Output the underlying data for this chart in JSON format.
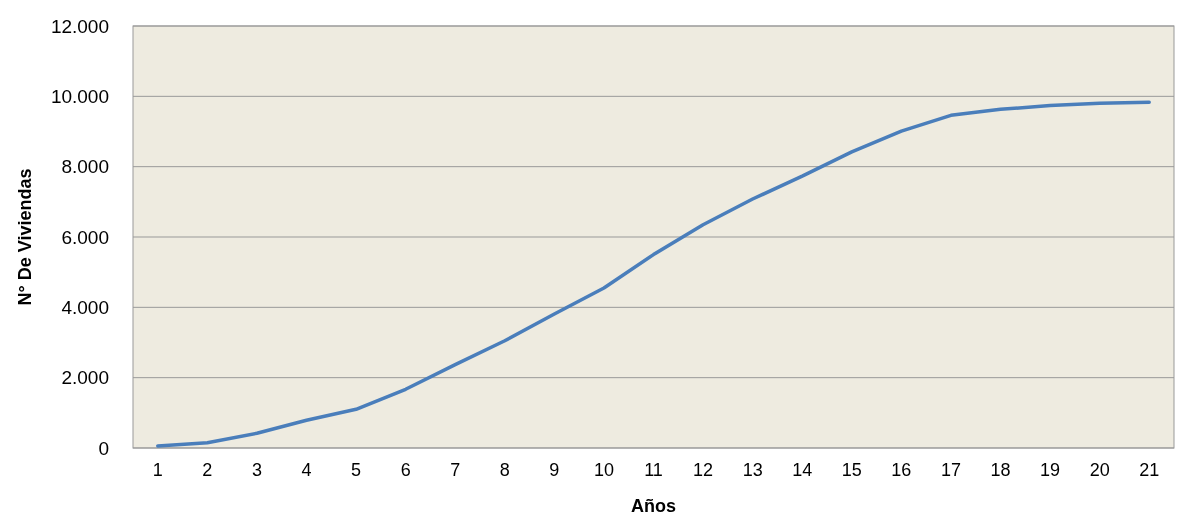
{
  "chart_data": {
    "type": "line",
    "xlabel": "Años",
    "ylabel": "N° De Viviendas",
    "x": [
      1,
      2,
      3,
      4,
      5,
      6,
      7,
      8,
      9,
      10,
      11,
      12,
      13,
      14,
      15,
      16,
      17,
      18,
      19,
      20,
      21
    ],
    "series": [
      {
        "color": "#4a7ebb",
        "values": [
          60,
          150,
          420,
          790,
          1100,
          1670,
          2370,
          3050,
          3810,
          4550,
          5500,
          6350,
          7080,
          7730,
          8420,
          9010,
          9460,
          9630,
          9740,
          9800,
          9830
        ]
      }
    ],
    "xlim": [
      0.5,
      21.5
    ],
    "xticks": [
      1,
      2,
      3,
      4,
      5,
      6,
      7,
      8,
      9,
      10,
      11,
      12,
      13,
      14,
      15,
      16,
      17,
      18,
      19,
      20,
      21
    ],
    "ylim": [
      0,
      12000
    ],
    "yticks": [
      {
        "value": 0,
        "label": "0"
      },
      {
        "value": 2000,
        "label": "2.000"
      },
      {
        "value": 4000,
        "label": "4.000"
      },
      {
        "value": 6000,
        "label": "6.000"
      },
      {
        "value": 8000,
        "label": "8.000"
      },
      {
        "value": 10000,
        "label": "10.000"
      },
      {
        "value": 12000,
        "label": "12.000"
      }
    ],
    "grid": "y",
    "legend": false,
    "marker": "none",
    "line_style": "solid"
  }
}
